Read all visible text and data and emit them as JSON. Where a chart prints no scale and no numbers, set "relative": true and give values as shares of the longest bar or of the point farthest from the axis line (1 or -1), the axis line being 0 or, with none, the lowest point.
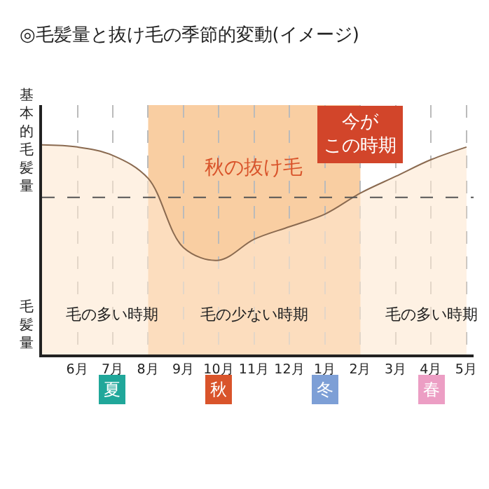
{
  "chart_data": {
    "type": "area",
    "title": "◎毛髪量と抜け毛の季節的変動(イメージ)",
    "ylabel": "毛髪量",
    "relative": true,
    "categories": [
      null,
      "6月",
      "7月",
      "8月",
      "9月",
      "10月",
      "11月",
      "12月",
      "1月",
      "2月",
      "3月",
      "4月",
      "5月"
    ],
    "series": [
      {
        "color": "#fde8d0",
        "values": [
          1.0,
          0.99,
          0.95,
          0.84,
          0.51,
          0.45,
          0.55,
          0.61,
          0.67,
          0.77,
          0.85,
          0.93,
          0.99
        ]
      }
    ],
    "ref_lines": [
      {
        "axis": "y",
        "value": 0.75,
        "label": "基本的毛髪量",
        "color": "#555555",
        "line_style": "dashed"
      }
    ],
    "bands": [
      {
        "axis": "x",
        "from": "8月",
        "to": "2月",
        "label": "毛の少ない時期",
        "color": "#f7bd83"
      }
    ],
    "annotations": [
      "毛の多い時期",
      "毛の多い時期",
      "秋の抜け毛",
      "今がこの時期",
      "夏",
      "秋",
      "冬",
      "春"
    ],
    "grid": "x"
  }
}
